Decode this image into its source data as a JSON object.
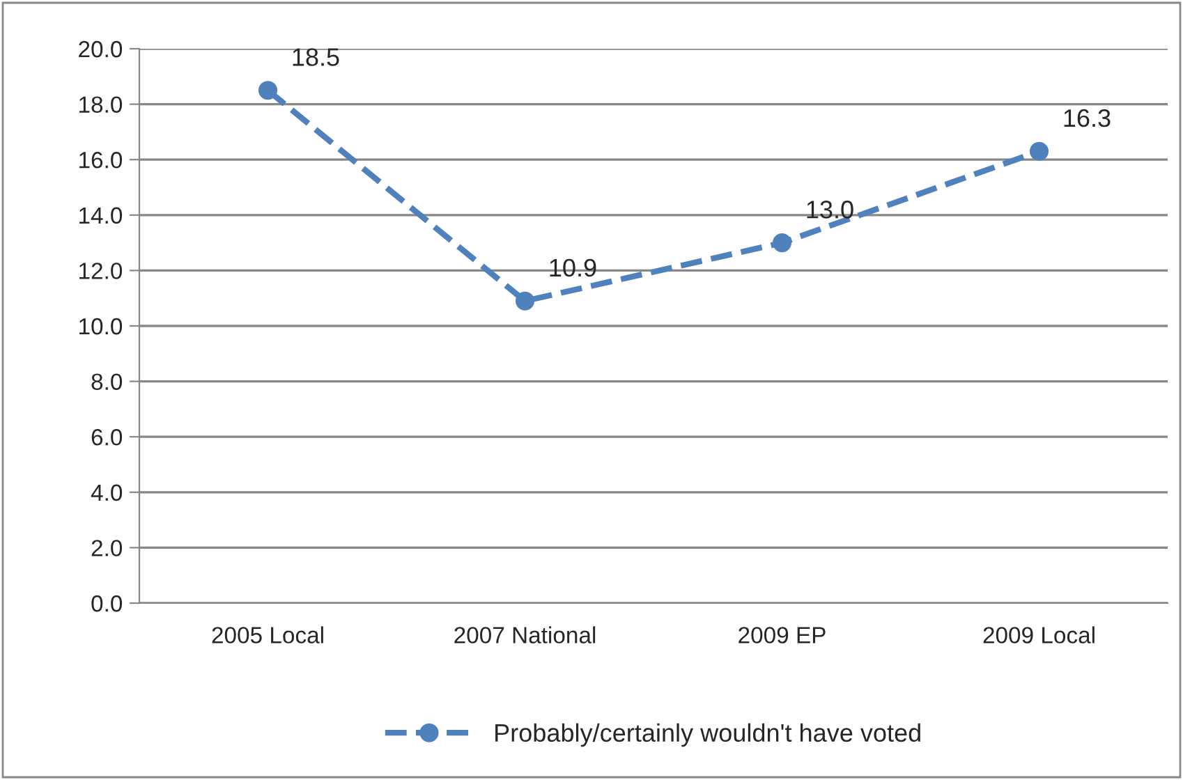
{
  "chart_data": {
    "type": "line",
    "categories": [
      "2005 Local",
      "2007 National",
      "2009 EP",
      "2009 Local"
    ],
    "series": [
      {
        "name": "Probably/certainly wouldn't have voted",
        "color": "#4f81bd",
        "values": [
          18.5,
          10.9,
          13.0,
          16.3
        ],
        "value_labels": [
          "18.5",
          "10.9",
          "13.0",
          "16.3"
        ]
      }
    ],
    "ylim": [
      0,
      20
    ],
    "yticks": [
      {
        "value": 0,
        "label": "0.0"
      },
      {
        "value": 2,
        "label": "2.0"
      },
      {
        "value": 4,
        "label": "4.0"
      },
      {
        "value": 6,
        "label": "6.0"
      },
      {
        "value": 8,
        "label": "8.0"
      },
      {
        "value": 10,
        "label": "10.0"
      },
      {
        "value": 12,
        "label": "12.0"
      },
      {
        "value": 14,
        "label": "14.0"
      },
      {
        "value": 16,
        "label": "16.0"
      },
      {
        "value": 18,
        "label": "18.0"
      },
      {
        "value": 20,
        "label": "20.0"
      }
    ],
    "grid": "y",
    "legend": "bottom",
    "marker": "circle",
    "line_style": "dashed"
  }
}
